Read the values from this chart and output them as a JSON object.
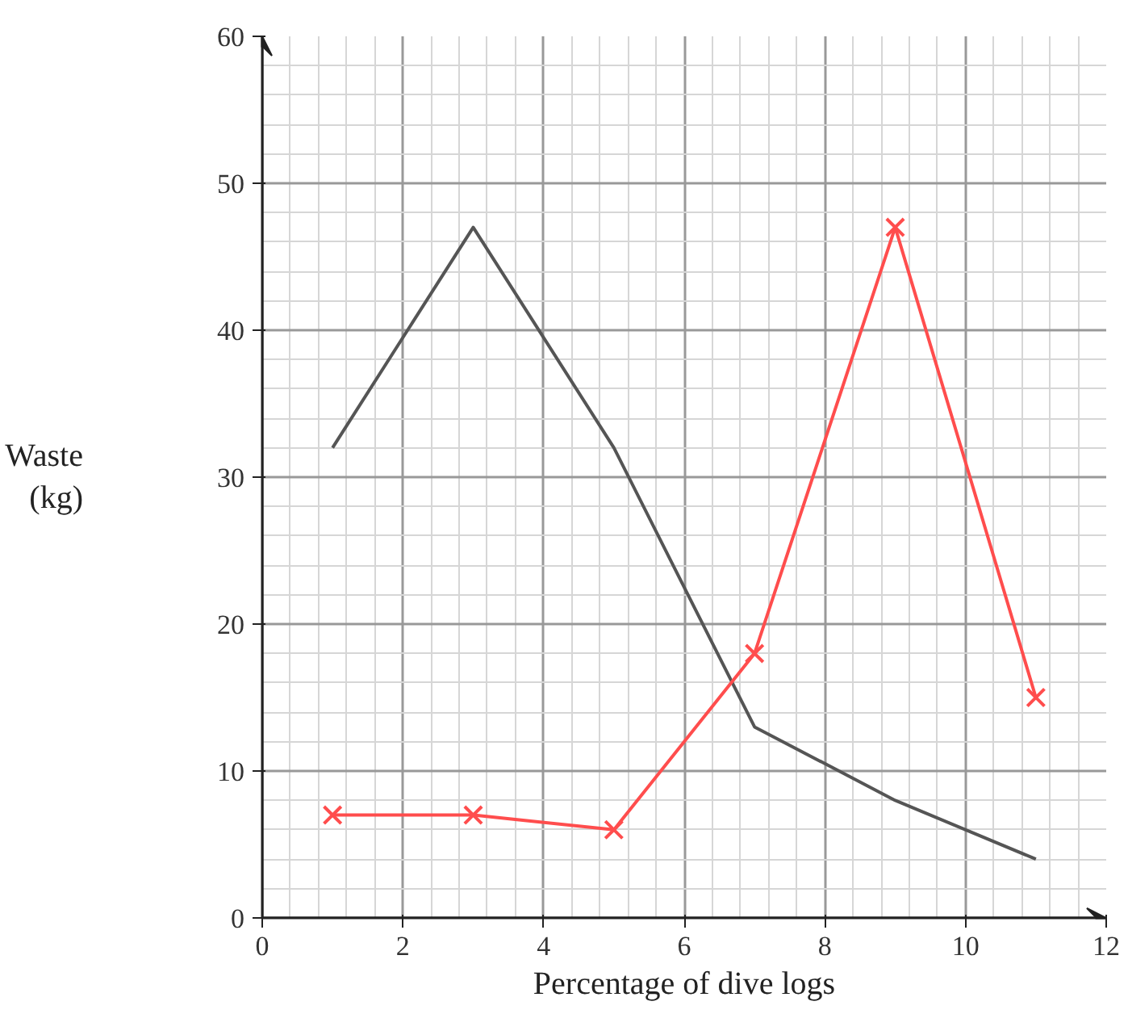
{
  "chart_data": {
    "type": "line",
    "xlabel": "Percentage of dive logs",
    "ylabel": "Waste (kg)",
    "x": [
      1,
      3,
      5,
      7,
      9,
      11
    ],
    "series": [
      {
        "color": "#555555",
        "values": [
          32,
          47,
          32,
          13,
          8,
          4
        ],
        "marker": "none"
      },
      {
        "color": "#ff4d4d",
        "values": [
          7,
          7,
          6,
          18,
          47,
          15
        ],
        "marker": "cross"
      }
    ],
    "xlim": [
      0,
      12
    ],
    "ylim": [
      0,
      60
    ],
    "xticks": [
      0,
      2,
      4,
      6,
      8,
      10,
      12
    ],
    "yticks": [
      0,
      10,
      20,
      30,
      40,
      50,
      60
    ],
    "grid": true
  }
}
